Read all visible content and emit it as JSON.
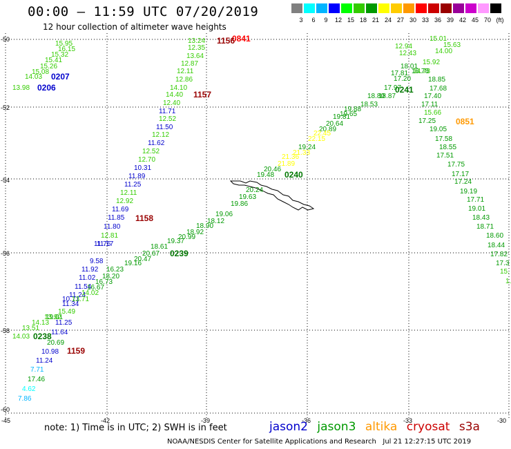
{
  "header": {
    "title": "00:00 — 11:59 UTC 07/20/2019",
    "subtitle": "12 hour collection of altimeter wave heights"
  },
  "colorbar": {
    "colors": [
      "#808080",
      "#00ffff",
      "#00b4ff",
      "#0000ff",
      "#00ff00",
      "#33cc00",
      "#009900",
      "#ffff00",
      "#ffcc00",
      "#ff9900",
      "#ff0000",
      "#cc0000",
      "#990000",
      "#990099",
      "#cc00cc",
      "#ff99ff",
      "#000000"
    ],
    "labels": [
      "3",
      "6",
      "9",
      "12",
      "15",
      "18",
      "21",
      "24",
      "27",
      "30",
      "33",
      "36",
      "39",
      "42",
      "45",
      "70",
      "(ft)"
    ]
  },
  "axes": {
    "lat_labels": [
      "-50",
      "-52",
      "-54",
      "-56",
      "-58",
      "-60"
    ],
    "lon_labels": [
      "-45",
      "-42",
      "-39",
      "-36",
      "-33",
      "-30"
    ],
    "lat_range": [
      -60,
      -50
    ],
    "lon_range": [
      -45,
      -30
    ],
    "grid": "dotted"
  },
  "passes": [
    {
      "label": "0841",
      "color": "#ff0000"
    },
    {
      "label": "1156",
      "color": "#990000"
    },
    {
      "label": "0207",
      "color": "#0000cc"
    },
    {
      "label": "0206",
      "color": "#0000cc"
    },
    {
      "label": "1157",
      "color": "#990000"
    },
    {
      "label": "0241",
      "color": "#007700"
    },
    {
      "label": "0851",
      "color": "#ff9900"
    },
    {
      "label": "0240",
      "color": "#007700"
    },
    {
      "label": "1158",
      "color": "#990000"
    },
    {
      "label": "0239",
      "color": "#007700"
    },
    {
      "label": "0238",
      "color": "#007700"
    },
    {
      "label": "1159",
      "color": "#990000"
    }
  ],
  "swh_values": [
    {
      "v": "15.95",
      "c": "#33cc00"
    },
    {
      "v": "16.15",
      "c": "#33cc00"
    },
    {
      "v": "15.32",
      "c": "#33cc00"
    },
    {
      "v": "15.41",
      "c": "#33cc00"
    },
    {
      "v": "15.26",
      "c": "#33cc00"
    },
    {
      "v": "15.08",
      "c": "#33cc00"
    },
    {
      "v": "14.03",
      "c": "#33cc00"
    },
    {
      "v": "13.98",
      "c": "#33cc00"
    },
    {
      "v": "13.24",
      "c": "#33cc00"
    },
    {
      "v": "12.35",
      "c": "#33cc00"
    },
    {
      "v": "13.64",
      "c": "#33cc00"
    },
    {
      "v": "12.87",
      "c": "#33cc00"
    },
    {
      "v": "12.11",
      "c": "#33cc00"
    },
    {
      "v": "12.86",
      "c": "#33cc00"
    },
    {
      "v": "14.10",
      "c": "#33cc00"
    },
    {
      "v": "14.40",
      "c": "#33cc00"
    },
    {
      "v": "12.40",
      "c": "#33cc00"
    },
    {
      "v": "11.71",
      "c": "#0000cc"
    },
    {
      "v": "12.52",
      "c": "#33cc00"
    },
    {
      "v": "11.50",
      "c": "#0000cc"
    },
    {
      "v": "12.12",
      "c": "#33cc00"
    },
    {
      "v": "11.62",
      "c": "#0000cc"
    },
    {
      "v": "12.52",
      "c": "#33cc00"
    },
    {
      "v": "12.70",
      "c": "#33cc00"
    },
    {
      "v": "10.31",
      "c": "#0000cc"
    },
    {
      "v": "11.89",
      "c": "#0000cc"
    },
    {
      "v": "11.25",
      "c": "#0000cc"
    },
    {
      "v": "12.11",
      "c": "#33cc00"
    },
    {
      "v": "12.92",
      "c": "#33cc00"
    },
    {
      "v": "11.69",
      "c": "#0000cc"
    },
    {
      "v": "11.85",
      "c": "#0000cc"
    },
    {
      "v": "11.80",
      "c": "#0000cc"
    },
    {
      "v": "12.81",
      "c": "#33cc00"
    },
    {
      "v": "11.76",
      "c": "#0000cc"
    },
    {
      "v": "11.17",
      "c": "#0000cc"
    },
    {
      "v": "9.58",
      "c": "#0000cc"
    },
    {
      "v": "11.92",
      "c": "#0000cc"
    },
    {
      "v": "11.02",
      "c": "#0000cc"
    },
    {
      "v": "11.54",
      "c": "#0000cc"
    },
    {
      "v": "11.24",
      "c": "#0000cc"
    },
    {
      "v": "10.71",
      "c": "#0000cc"
    },
    {
      "v": "11.34",
      "c": "#0000cc"
    },
    {
      "v": "11.25",
      "c": "#0000cc"
    },
    {
      "v": "11.64",
      "c": "#0000cc"
    },
    {
      "v": "10.98",
      "c": "#0000cc"
    },
    {
      "v": "11.24",
      "c": "#0000cc"
    },
    {
      "v": "15.01",
      "c": "#33cc00"
    },
    {
      "v": "15.63",
      "c": "#33cc00"
    },
    {
      "v": "12.94",
      "c": "#33cc00"
    },
    {
      "v": "14.00",
      "c": "#33cc00"
    },
    {
      "v": "12.43",
      "c": "#33cc00"
    },
    {
      "v": "15.92",
      "c": "#33cc00"
    },
    {
      "v": "14.73",
      "c": "#33cc00"
    },
    {
      "v": "18.01",
      "c": "#009900"
    },
    {
      "v": "16.78",
      "c": "#009900"
    },
    {
      "v": "17.81",
      "c": "#009900"
    },
    {
      "v": "17.20",
      "c": "#009900"
    },
    {
      "v": "18.85",
      "c": "#009900"
    },
    {
      "v": "17.97",
      "c": "#009900"
    },
    {
      "v": "17.68",
      "c": "#009900"
    },
    {
      "v": "18.87",
      "c": "#009900"
    },
    {
      "v": "18.80",
      "c": "#009900"
    },
    {
      "v": "17.40",
      "c": "#009900"
    },
    {
      "v": "18.53",
      "c": "#009900"
    },
    {
      "v": "17.11",
      "c": "#009900"
    },
    {
      "v": "19.88",
      "c": "#009900"
    },
    {
      "v": "15.66",
      "c": "#33cc00"
    },
    {
      "v": "19.65",
      "c": "#009900"
    },
    {
      "v": "17.25",
      "c": "#009900"
    },
    {
      "v": "19.81",
      "c": "#009900"
    },
    {
      "v": "19.05",
      "c": "#009900"
    },
    {
      "v": "20.64",
      "c": "#009900"
    },
    {
      "v": "20.89",
      "c": "#009900"
    },
    {
      "v": "17.58",
      "c": "#009900"
    },
    {
      "v": "22.45",
      "c": "#ffff00"
    },
    {
      "v": "22.15",
      "c": "#ffff00"
    },
    {
      "v": "18.55",
      "c": "#009900"
    },
    {
      "v": "19.24",
      "c": "#009900"
    },
    {
      "v": "17.51",
      "c": "#009900"
    },
    {
      "v": "21.33",
      "c": "#ffff00"
    },
    {
      "v": "21.36",
      "c": "#ffff00"
    },
    {
      "v": "17.75",
      "c": "#009900"
    },
    {
      "v": "21.89",
      "c": "#ffff00"
    },
    {
      "v": "20.46",
      "c": "#009900"
    },
    {
      "v": "17.17",
      "c": "#009900"
    },
    {
      "v": "19.48",
      "c": "#009900"
    },
    {
      "v": "17.24",
      "c": "#009900"
    },
    {
      "v": "19.19",
      "c": "#009900"
    },
    {
      "v": "20.24",
      "c": "#009900"
    },
    {
      "v": "17.71",
      "c": "#009900"
    },
    {
      "v": "19.63",
      "c": "#009900"
    },
    {
      "v": "19.01",
      "c": "#009900"
    },
    {
      "v": "19.86",
      "c": "#009900"
    },
    {
      "v": "18.43",
      "c": "#009900"
    },
    {
      "v": "19.06",
      "c": "#009900"
    },
    {
      "v": "18.71",
      "c": "#009900"
    },
    {
      "v": "18.12",
      "c": "#009900"
    },
    {
      "v": "18.60",
      "c": "#009900"
    },
    {
      "v": "18.90",
      "c": "#009900"
    },
    {
      "v": "18.92",
      "c": "#009900"
    },
    {
      "v": "18.44",
      "c": "#009900"
    },
    {
      "v": "20.99",
      "c": "#009900"
    },
    {
      "v": "17.82",
      "c": "#009900"
    },
    {
      "v": "19.37",
      "c": "#009900"
    },
    {
      "v": "17.3",
      "c": "#009900"
    },
    {
      "v": "18.61",
      "c": "#009900"
    },
    {
      "v": "15.",
      "c": "#33cc00"
    },
    {
      "v": "20.67",
      "c": "#009900"
    },
    {
      "v": "1.",
      "c": "#33cc00"
    },
    {
      "v": "20.47",
      "c": "#009900"
    },
    {
      "v": "19.16",
      "c": "#009900"
    },
    {
      "v": "16.23",
      "c": "#009900"
    },
    {
      "v": "18.20",
      "c": "#009900"
    },
    {
      "v": "16.73",
      "c": "#009900"
    },
    {
      "v": "16.67",
      "c": "#009900"
    },
    {
      "v": "14.02",
      "c": "#33cc00"
    },
    {
      "v": "13.71",
      "c": "#33cc00"
    },
    {
      "v": "15.49",
      "c": "#33cc00"
    },
    {
      "v": "19.01",
      "c": "#009900"
    },
    {
      "v": "13.92",
      "c": "#33cc00"
    },
    {
      "v": "14.13",
      "c": "#33cc00"
    },
    {
      "v": "13.51",
      "c": "#33cc00"
    },
    {
      "v": "14.03",
      "c": "#33cc00"
    },
    {
      "v": "20.69",
      "c": "#009900"
    },
    {
      "v": "7.71",
      "c": "#00b4ff"
    },
    {
      "v": "17.46",
      "c": "#009900"
    },
    {
      "v": "4.62",
      "c": "#00ffff"
    },
    {
      "v": "7.86",
      "c": "#00b4ff"
    }
  ],
  "note": "note: 1) Time is in UTC; 2) SWH is in feet",
  "legend": [
    {
      "label": "jason2",
      "color": "#0000cc"
    },
    {
      "label": "jason3",
      "color": "#009900"
    },
    {
      "label": "altika",
      "color": "#ff9900"
    },
    {
      "label": "cryosat",
      "color": "#cc0000"
    },
    {
      "label": "s3a",
      "color": "#990000"
    }
  ],
  "credit": "NOAA/NESDIS Center for Satellite Applications and Research   Jul 21 12:27:15 UTC 2019"
}
